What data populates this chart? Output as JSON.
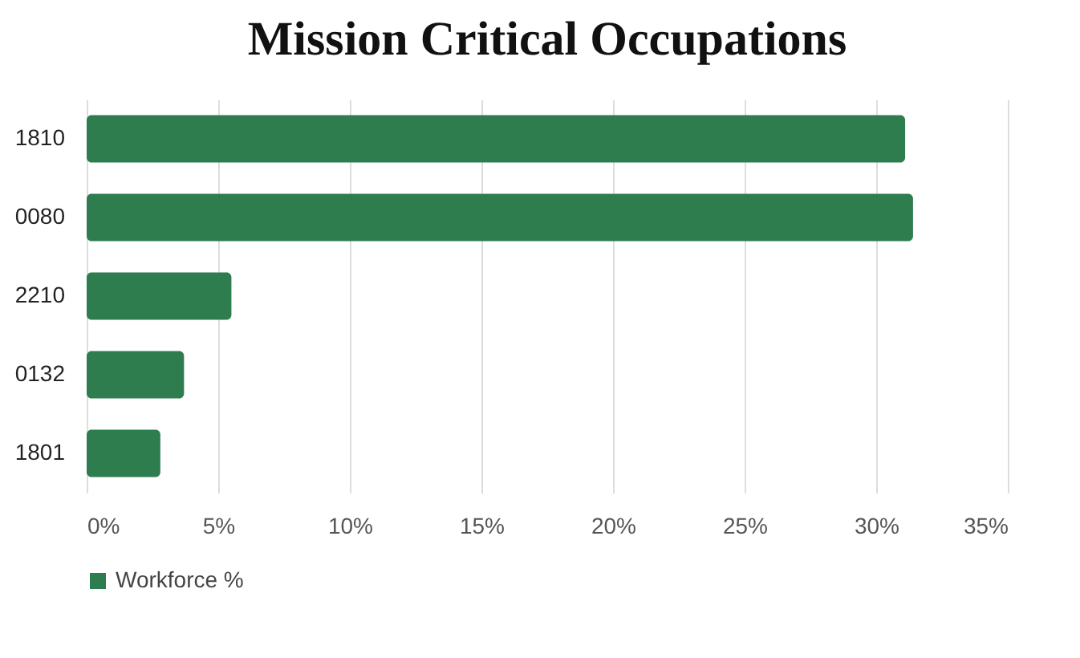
{
  "chart_data": {
    "type": "bar",
    "orientation": "horizontal",
    "title": "Mission Critical Occupations",
    "categories": [
      "1810",
      "0080",
      "2210",
      "0132",
      "1801"
    ],
    "series": [
      {
        "name": "Workforce %",
        "color": "#2e7d4f",
        "values": [
          31.1,
          31.4,
          5.5,
          3.7,
          2.8
        ]
      }
    ],
    "xlim": [
      0,
      35
    ],
    "xticks": [
      {
        "value": 0,
        "label": "0%"
      },
      {
        "value": 5,
        "label": "5%"
      },
      {
        "value": 10,
        "label": "10%"
      },
      {
        "value": 15,
        "label": "15%"
      },
      {
        "value": 20,
        "label": "20%"
      },
      {
        "value": 25,
        "label": "25%"
      },
      {
        "value": 30,
        "label": "30%"
      },
      {
        "value": 35,
        "label": "35%"
      }
    ],
    "grid": "x",
    "legend": "bottom"
  }
}
